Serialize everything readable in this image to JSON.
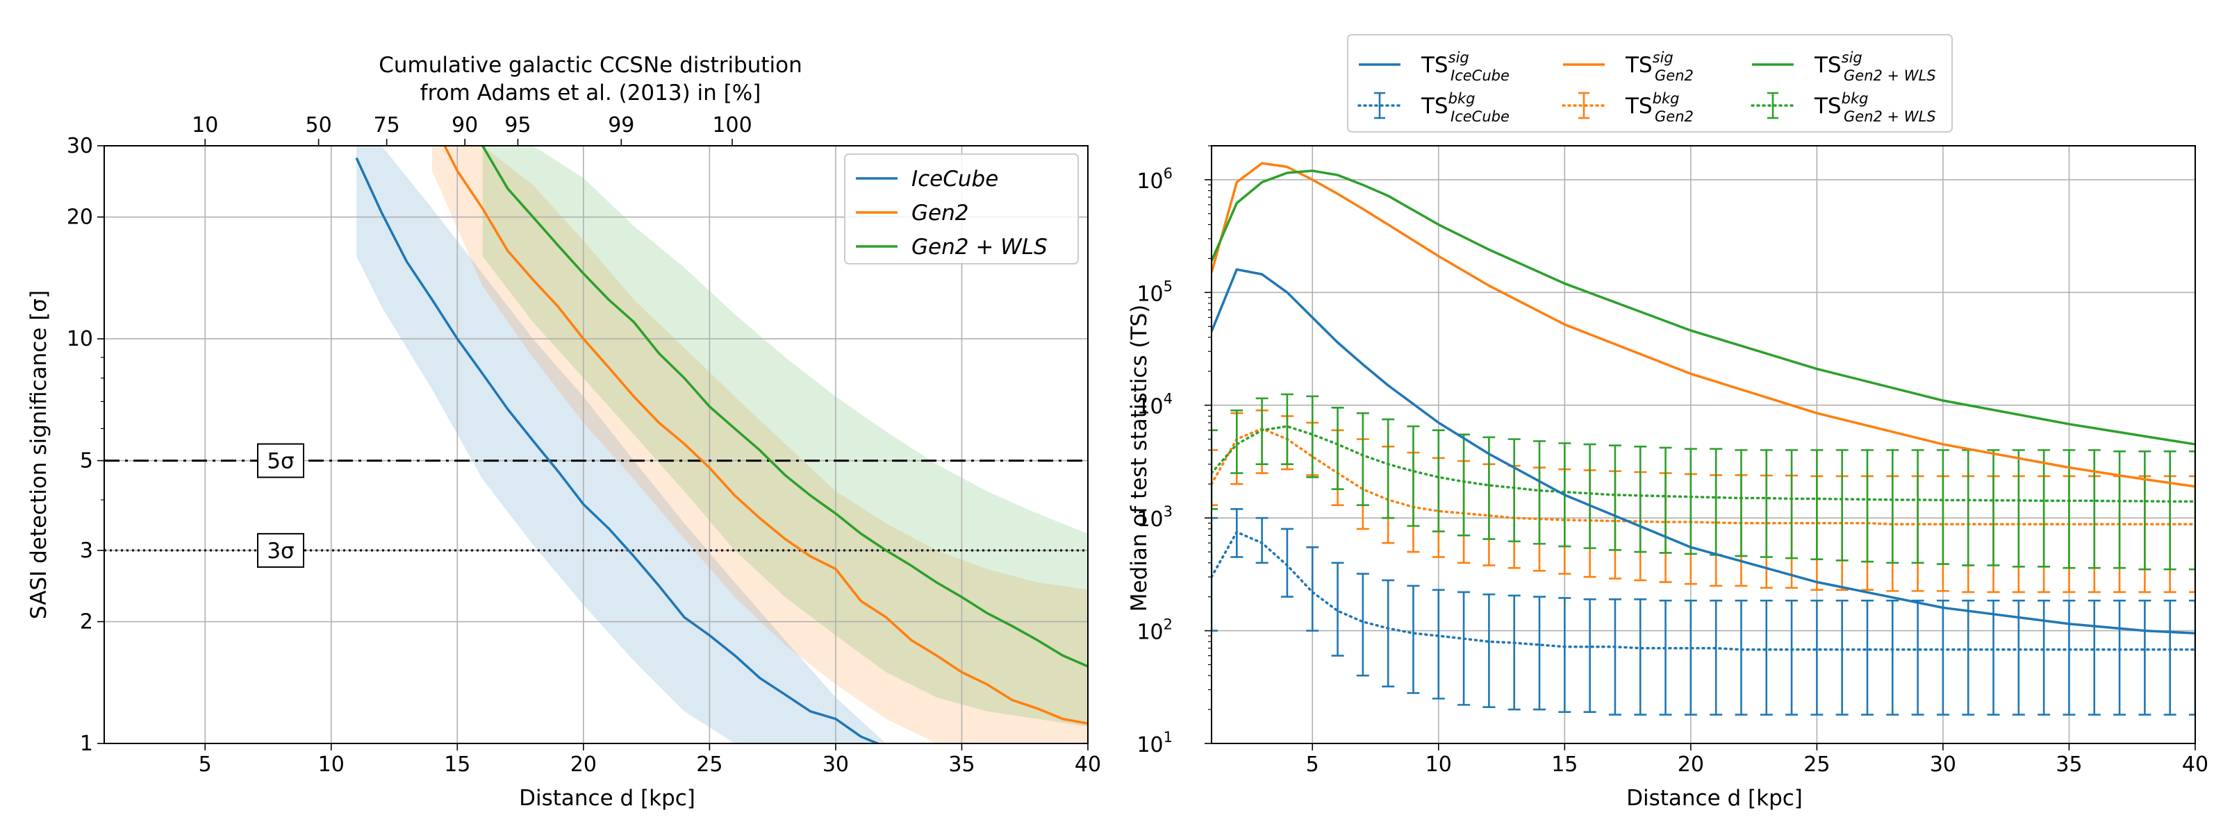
{
  "colors": {
    "icecube": "#1f77b4",
    "gen2": "#ff7f0e",
    "gen2wls": "#2ca02c",
    "grid": "#b0b0b0"
  },
  "chart_data": [
    {
      "type": "line",
      "title": "Cumulative galactic CCSNe distribution from Adams et al. (2013) in [%]",
      "title_lines": [
        "Cumulative galactic CCSNe distribution",
        "from Adams et al. (2013) in [%]"
      ],
      "xlabel": "Distance d [kpc]",
      "ylabel": "SASI detection significance [σ]",
      "xlim": [
        1,
        40
      ],
      "ylim": [
        1,
        30
      ],
      "yscale": "log",
      "grid": true,
      "legend": "top-right",
      "x_ticks": [
        "5",
        "10",
        "15",
        "20",
        "25",
        "30",
        "35",
        "40"
      ],
      "x_tick_values": [
        5,
        10,
        15,
        20,
        25,
        30,
        35,
        40
      ],
      "y_ticks": [
        "1",
        "2",
        "3",
        "5",
        "10",
        "20",
        "30"
      ],
      "y_tick_values": [
        1,
        2,
        3,
        5,
        10,
        20,
        30
      ],
      "top_axis_ticks": [
        "10",
        "50",
        "75",
        "90",
        "95",
        "99",
        "100"
      ],
      "top_axis_tick_distances": [
        5,
        9.5,
        12.2,
        15.3,
        17.4,
        21.5,
        25.9
      ],
      "thresholds": [
        {
          "label": "5σ",
          "value": 5,
          "style": "dashdot"
        },
        {
          "label": "3σ",
          "value": 3,
          "style": "dotted"
        }
      ],
      "series": [
        {
          "name": "IceCube",
          "key": "icecube",
          "x": [
            11,
            12,
            13,
            14,
            15,
            16,
            17,
            18,
            19,
            20,
            21,
            22,
            23,
            24,
            25,
            26,
            27,
            28,
            29,
            30,
            31,
            32
          ],
          "y": [
            28,
            20.5,
            15.5,
            12.5,
            10,
            8.2,
            6.7,
            5.6,
            4.7,
            3.9,
            3.4,
            2.9,
            2.45,
            2.05,
            1.85,
            1.65,
            1.45,
            1.32,
            1.2,
            1.15,
            1.04,
            0.98
          ],
          "band_x": [
            11,
            12,
            14,
            16,
            18,
            20,
            22,
            24,
            26,
            28,
            30,
            32
          ],
          "band_low": [
            16,
            12,
            7.5,
            4.5,
            3.1,
            2.2,
            1.6,
            1.2,
            0.9,
            0.75,
            0.65,
            0.6
          ],
          "band_high": [
            30,
            30,
            21,
            14.5,
            10,
            7.2,
            5,
            3.5,
            2.5,
            1.8,
            1.3,
            1.0
          ]
        },
        {
          "name": "Gen2",
          "key": "gen2",
          "x": [
            14.5,
            15,
            16,
            17,
            18,
            19,
            20,
            21,
            22,
            23,
            24,
            25,
            26,
            27,
            28,
            29,
            30,
            31,
            32,
            33,
            34,
            35,
            36,
            37,
            38,
            39,
            40
          ],
          "y": [
            30,
            26,
            21,
            16.5,
            14,
            12,
            10,
            8.5,
            7.2,
            6.2,
            5.5,
            4.8,
            4.1,
            3.6,
            3.2,
            2.9,
            2.7,
            2.25,
            2.05,
            1.8,
            1.65,
            1.5,
            1.4,
            1.28,
            1.22,
            1.15,
            1.12
          ],
          "band_x": [
            14,
            16,
            18,
            20,
            22,
            24,
            26,
            28,
            30,
            32,
            34,
            36,
            38,
            40
          ],
          "band_low": [
            26,
            13.5,
            9,
            6.2,
            4.5,
            3.2,
            2.3,
            1.75,
            1.4,
            1.15,
            1.0,
            0.9,
            0.85,
            0.8
          ],
          "band_high": [
            30,
            30,
            24,
            17.5,
            12.5,
            9.5,
            7.2,
            5.5,
            4.2,
            3.5,
            3.0,
            2.7,
            2.5,
            2.4
          ]
        },
        {
          "name": "Gen2 + WLS",
          "key": "gen2wls",
          "x": [
            16,
            17,
            18,
            19,
            20,
            21,
            22,
            23,
            24,
            25,
            26,
            27,
            28,
            29,
            30,
            31,
            32,
            33,
            34,
            35,
            36,
            37,
            38,
            39,
            40
          ],
          "y": [
            30,
            23.5,
            20,
            17,
            14.5,
            12.5,
            11,
            9.2,
            8,
            6.8,
            6,
            5.3,
            4.6,
            4.1,
            3.7,
            3.3,
            3,
            2.75,
            2.5,
            2.3,
            2.1,
            1.95,
            1.8,
            1.65,
            1.55
          ],
          "band_x": [
            16,
            18,
            20,
            22,
            24,
            26,
            28,
            30,
            32,
            34,
            36,
            38,
            40
          ],
          "band_low": [
            16,
            11,
            8,
            5.8,
            4.2,
            3.0,
            2.3,
            1.85,
            1.5,
            1.3,
            1.2,
            1.15,
            1.1
          ],
          "band_high": [
            30,
            30,
            25,
            19,
            15,
            11.5,
            9,
            7.2,
            5.9,
            4.9,
            4.2,
            3.7,
            3.3
          ]
        }
      ]
    },
    {
      "type": "line",
      "xlabel": "Distance d [kpc]",
      "ylabel": "Median of test statistics (TS)",
      "xlim": [
        1,
        40
      ],
      "ylim": [
        10,
        2000000
      ],
      "yscale": "log",
      "grid": true,
      "legend": "top (above plot, 3 columns)",
      "x_ticks": [
        "5",
        "10",
        "15",
        "20",
        "25",
        "30",
        "35",
        "40"
      ],
      "x_tick_values": [
        5,
        10,
        15,
        20,
        25,
        30,
        35,
        40
      ],
      "y_ticks": [
        {
          "base": "10",
          "exp": "1"
        },
        {
          "base": "10",
          "exp": "2"
        },
        {
          "base": "10",
          "exp": "3"
        },
        {
          "base": "10",
          "exp": "4"
        },
        {
          "base": "10",
          "exp": "5"
        },
        {
          "base": "10",
          "exp": "6"
        }
      ],
      "y_tick_values": [
        10,
        100,
        1000,
        10000,
        100000,
        1000000
      ],
      "series": [
        {
          "legend": {
            "main": "TS",
            "sup": "sig",
            "sub": "IceCube"
          },
          "key": "icecube",
          "kind": "sig",
          "x": [
            1,
            2,
            3,
            4,
            5,
            6,
            7,
            8,
            10,
            12,
            15,
            20,
            25,
            30,
            35,
            38,
            40
          ],
          "y": [
            45000,
            160000,
            145000,
            100000,
            60000,
            36000,
            23000,
            15000,
            7000,
            3700,
            1600,
            550,
            270,
            160,
            115,
            100,
            95
          ]
        },
        {
          "legend": {
            "main": "TS",
            "sup": "bkg",
            "sub": "IceCube"
          },
          "key": "icecube",
          "kind": "bkg",
          "x": [
            1,
            2,
            3,
            4,
            5,
            6,
            7,
            8,
            9,
            10,
            11,
            12,
            13,
            14,
            15,
            16,
            17,
            18,
            19,
            20,
            21,
            22,
            23,
            24,
            25,
            26,
            27,
            28,
            29,
            30,
            31,
            32,
            33,
            34,
            35,
            36,
            37,
            38,
            39,
            40
          ],
          "y": [
            300,
            750,
            600,
            380,
            220,
            150,
            120,
            105,
            95,
            90,
            85,
            80,
            78,
            75,
            72,
            72,
            72,
            70,
            70,
            70,
            70,
            68,
            68,
            68,
            68,
            68,
            68,
            68,
            68,
            68,
            68,
            68,
            68,
            68,
            68,
            68,
            68,
            68,
            68,
            68
          ],
          "err_low": [
            100,
            450,
            400,
            200,
            100,
            60,
            40,
            32,
            28,
            25,
            22,
            21,
            20,
            20,
            19,
            19,
            18,
            18,
            18,
            18,
            18,
            18,
            18,
            18,
            18,
            18,
            18,
            18,
            18,
            18,
            18,
            18,
            18,
            18,
            18,
            18,
            18,
            18,
            18,
            18
          ],
          "err_high": [
            1000,
            1200,
            1000,
            800,
            550,
            400,
            320,
            280,
            250,
            230,
            220,
            210,
            205,
            200,
            195,
            190,
            190,
            190,
            185,
            185,
            185,
            185,
            185,
            185,
            185,
            185,
            185,
            185,
            185,
            185,
            185,
            185,
            185,
            185,
            185,
            185,
            185,
            185,
            185,
            185
          ]
        },
        {
          "legend": {
            "main": "TS",
            "sup": "sig",
            "sub": "Gen2"
          },
          "key": "gen2",
          "kind": "sig",
          "x": [
            1,
            2,
            3,
            4,
            5,
            6,
            7,
            8,
            10,
            12,
            15,
            20,
            25,
            30,
            35,
            38,
            40
          ],
          "y": [
            150000,
            950000,
            1400000,
            1300000,
            1000000,
            750000,
            550000,
            400000,
            210000,
            115000,
            52000,
            19000,
            8500,
            4500,
            2800,
            2200,
            1900
          ]
        },
        {
          "legend": {
            "main": "TS",
            "sup": "bkg",
            "sub": "Gen2"
          },
          "key": "gen2",
          "kind": "bkg",
          "x": [
            1,
            2,
            3,
            4,
            5,
            6,
            7,
            8,
            9,
            10,
            11,
            12,
            13,
            14,
            15,
            16,
            17,
            18,
            19,
            20,
            21,
            22,
            23,
            24,
            25,
            26,
            27,
            28,
            29,
            30,
            31,
            32,
            33,
            34,
            35,
            36,
            37,
            38,
            39,
            40
          ],
          "y": [
            2000,
            5000,
            6200,
            5000,
            3500,
            2500,
            1800,
            1450,
            1250,
            1150,
            1100,
            1050,
            1000,
            980,
            960,
            950,
            940,
            930,
            920,
            920,
            910,
            900,
            900,
            900,
            900,
            900,
            900,
            880,
            880,
            880,
            880,
            880,
            880,
            880,
            880,
            880,
            880,
            880,
            880,
            880
          ],
          "err_low": [
            1300,
            2000,
            2500,
            2700,
            2400,
            1300,
            800,
            600,
            500,
            450,
            400,
            380,
            360,
            340,
            320,
            300,
            290,
            280,
            270,
            260,
            250,
            250,
            240,
            240,
            230,
            230,
            230,
            225,
            225,
            225,
            220,
            220,
            220,
            220,
            220,
            220,
            220,
            220,
            220,
            220
          ],
          "err_high": [
            4000,
            8500,
            9000,
            8000,
            7000,
            6000,
            5000,
            4300,
            3800,
            3400,
            3200,
            3000,
            2900,
            2800,
            2700,
            2650,
            2600,
            2550,
            2500,
            2450,
            2400,
            2400,
            2380,
            2380,
            2350,
            2350,
            2350,
            2350,
            2350,
            2350,
            2350,
            2350,
            2350,
            2350,
            2350,
            2350,
            2350,
            2350,
            2350,
            2350
          ]
        },
        {
          "legend": {
            "main": "TS",
            "sup": "sig",
            "sub": "Gen2 + WLS"
          },
          "key": "gen2wls",
          "kind": "sig",
          "x": [
            1,
            2,
            3,
            4,
            5,
            6,
            7,
            8,
            10,
            12,
            15,
            20,
            25,
            30,
            35,
            38,
            40
          ],
          "y": [
            190000,
            620000,
            950000,
            1150000,
            1200000,
            1100000,
            900000,
            720000,
            400000,
            240000,
            120000,
            46000,
            21000,
            11000,
            6800,
            5300,
            4500
          ]
        },
        {
          "legend": {
            "main": "TS",
            "sup": "bkg",
            "sub": "Gen2 + WLS"
          },
          "key": "gen2wls",
          "kind": "bkg",
          "x": [
            1,
            2,
            3,
            4,
            5,
            6,
            7,
            8,
            9,
            10,
            11,
            12,
            13,
            14,
            15,
            16,
            17,
            18,
            19,
            20,
            21,
            22,
            23,
            24,
            25,
            26,
            27,
            28,
            29,
            30,
            31,
            32,
            33,
            34,
            35,
            36,
            37,
            38,
            39,
            40
          ],
          "y": [
            2500,
            4500,
            6000,
            6500,
            5500,
            4500,
            3600,
            3000,
            2600,
            2300,
            2100,
            1950,
            1850,
            1750,
            1700,
            1650,
            1600,
            1580,
            1560,
            1540,
            1520,
            1500,
            1500,
            1480,
            1480,
            1470,
            1460,
            1450,
            1450,
            1440,
            1440,
            1430,
            1430,
            1420,
            1420,
            1420,
            1410,
            1410,
            1400,
            1400
          ],
          "err_low": [
            1200,
            2500,
            3000,
            3000,
            2300,
            1800,
            1300,
            1000,
            850,
            760,
            700,
            650,
            620,
            590,
            560,
            540,
            520,
            500,
            490,
            480,
            470,
            460,
            450,
            440,
            430,
            420,
            410,
            400,
            400,
            390,
            380,
            380,
            370,
            370,
            360,
            360,
            360,
            350,
            350,
            350
          ],
          "err_high": [
            6000,
            9000,
            11500,
            12500,
            12000,
            9500,
            8500,
            7500,
            6500,
            6000,
            5500,
            5200,
            5000,
            4800,
            4600,
            4500,
            4400,
            4300,
            4200,
            4100,
            4100,
            4000,
            4000,
            4000,
            4000,
            4000,
            4000,
            4000,
            4000,
            4000,
            4000,
            4000,
            4000,
            4000,
            4000,
            4000,
            3900,
            3900,
            3900,
            3900
          ]
        }
      ]
    }
  ]
}
